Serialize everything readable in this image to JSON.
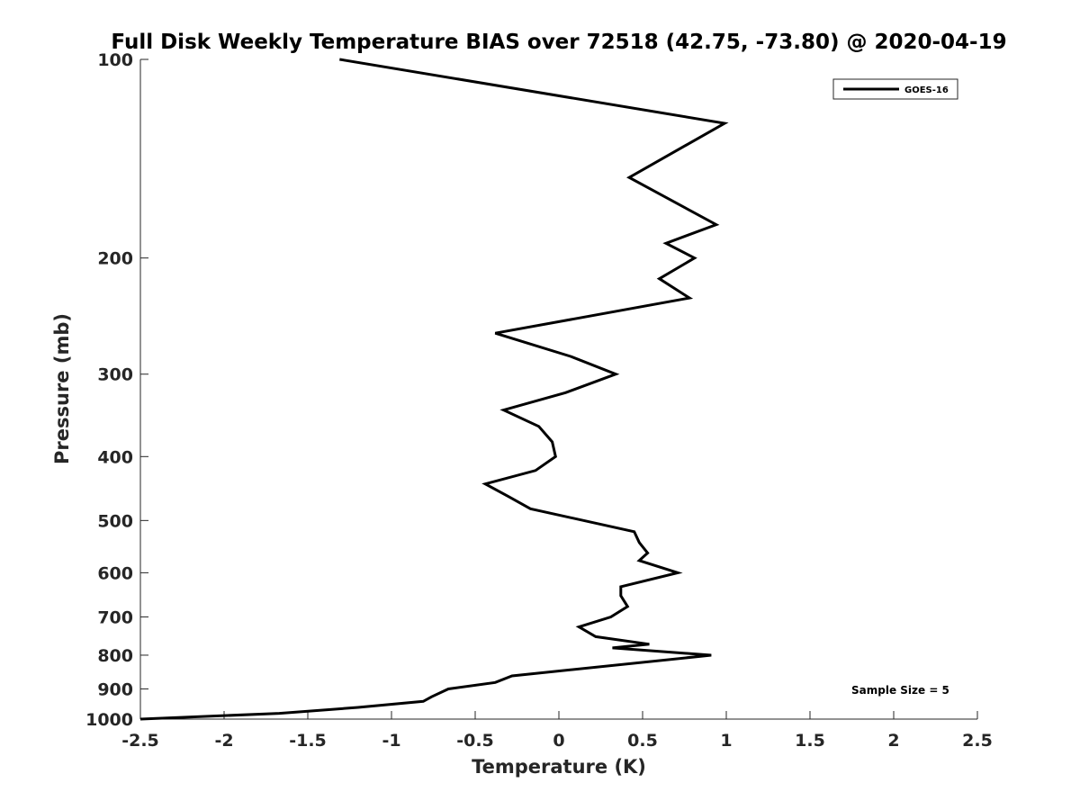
{
  "chart_data": {
    "type": "line",
    "title": "Full Disk Weekly Temperature BIAS over 72518 (42.75, -73.80) @ 2020-04-19",
    "xlabel": "Temperature (K)",
    "ylabel": "Pressure (mb)",
    "xlim": [
      -2.5,
      2.5
    ],
    "ylim": [
      100,
      1000
    ],
    "yscale": "log",
    "y_reversed": true,
    "grid": false,
    "legend_position": "top-right",
    "x_ticks": [
      "-2.5",
      "-2",
      "-1.5",
      "-1",
      "-0.5",
      "0",
      "0.5",
      "1",
      "1.5",
      "2",
      "2.5"
    ],
    "x_tick_values": [
      -2.5,
      -2,
      -1.5,
      -1,
      -0.5,
      0,
      0.5,
      1,
      1.5,
      2,
      2.5
    ],
    "y_ticks": [
      "100",
      "200",
      "300",
      "400",
      "500",
      "600",
      "700",
      "800",
      "900",
      "1000"
    ],
    "y_tick_values": [
      100,
      200,
      300,
      400,
      500,
      600,
      700,
      800,
      900,
      1000
    ],
    "annotation": "Sample Size = 5",
    "line_color": "#000000",
    "series": [
      {
        "name": "GOES-16",
        "points": [
          {
            "x": -1.31,
            "y": 100
          },
          {
            "x": 0.99,
            "y": 125
          },
          {
            "x": 0.42,
            "y": 151
          },
          {
            "x": 0.94,
            "y": 178
          },
          {
            "x": 0.64,
            "y": 190
          },
          {
            "x": 0.81,
            "y": 200
          },
          {
            "x": 0.6,
            "y": 215
          },
          {
            "x": 0.78,
            "y": 230
          },
          {
            "x": -0.38,
            "y": 260
          },
          {
            "x": 0.07,
            "y": 282
          },
          {
            "x": 0.34,
            "y": 300
          },
          {
            "x": 0.04,
            "y": 320
          },
          {
            "x": -0.33,
            "y": 340
          },
          {
            "x": -0.12,
            "y": 360
          },
          {
            "x": -0.04,
            "y": 380
          },
          {
            "x": -0.02,
            "y": 400
          },
          {
            "x": -0.14,
            "y": 420
          },
          {
            "x": -0.44,
            "y": 440
          },
          {
            "x": -0.3,
            "y": 460
          },
          {
            "x": -0.17,
            "y": 480
          },
          {
            "x": 0.45,
            "y": 520
          },
          {
            "x": 0.48,
            "y": 540
          },
          {
            "x": 0.53,
            "y": 560
          },
          {
            "x": 0.48,
            "y": 575
          },
          {
            "x": 0.71,
            "y": 600
          },
          {
            "x": 0.37,
            "y": 630
          },
          {
            "x": 0.37,
            "y": 650
          },
          {
            "x": 0.41,
            "y": 675
          },
          {
            "x": 0.31,
            "y": 700
          },
          {
            "x": 0.12,
            "y": 725
          },
          {
            "x": 0.22,
            "y": 750
          },
          {
            "x": 0.54,
            "y": 770
          },
          {
            "x": 0.32,
            "y": 780
          },
          {
            "x": 0.91,
            "y": 800
          },
          {
            "x": -0.28,
            "y": 860
          },
          {
            "x": -0.38,
            "y": 880
          },
          {
            "x": -0.66,
            "y": 900
          },
          {
            "x": -0.76,
            "y": 925
          },
          {
            "x": -0.81,
            "y": 940
          },
          {
            "x": -1.2,
            "y": 960
          },
          {
            "x": -1.67,
            "y": 980
          },
          {
            "x": -2.5,
            "y": 1000
          }
        ]
      }
    ]
  }
}
